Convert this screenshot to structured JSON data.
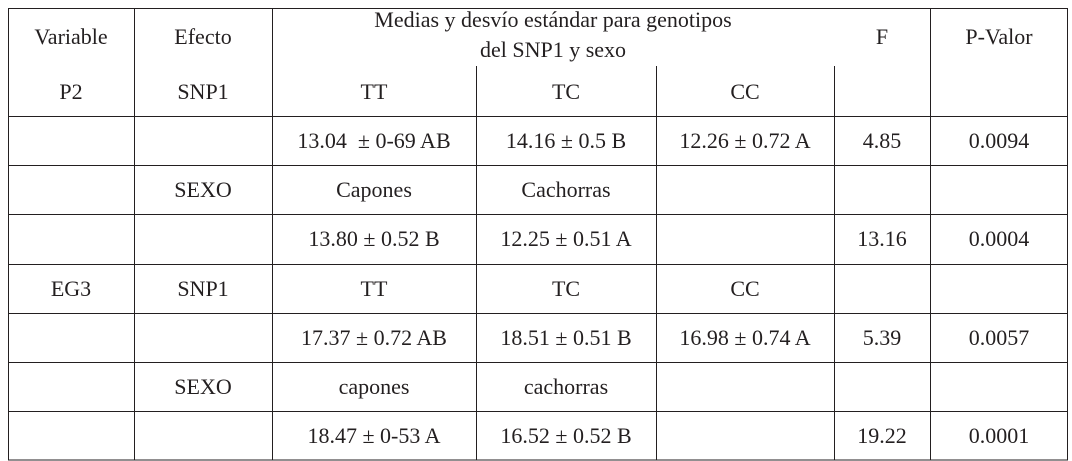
{
  "table": {
    "header": {
      "variable": "Variable",
      "efecto": "Efecto",
      "medias": [
        "Medias y desvío estándar para genotipos",
        "del SNP1 y sexo"
      ],
      "f": "F",
      "p_valor": "P-Valor"
    },
    "rows": [
      [
        "P2",
        "SNP1",
        "TT",
        "TC",
        "CC",
        null,
        null
      ],
      [
        null,
        null,
        "13.04  ± 0-69 AB",
        "14.16 ± 0.5 B",
        "12.26 ± 0.72 A",
        "4.85",
        "0.0094"
      ],
      [
        null,
        "SEXO",
        "Capones",
        "Cachorras",
        null,
        null,
        null
      ],
      [
        null,
        null,
        "13.80 ± 0.52 B",
        "12.25 ± 0.51 A",
        null,
        "13.16",
        "0.0004"
      ],
      [
        "EG3",
        "SNP1",
        "TT",
        "TC",
        "CC",
        null,
        null
      ],
      [
        null,
        null,
        "17.37 ± 0.72 AB",
        "18.51 ± 0.51 B",
        "16.98 ± 0.74 A",
        "5.39",
        "0.0057"
      ],
      [
        null,
        "SEXO",
        "capones",
        "cachorras",
        null,
        null,
        null
      ],
      [
        null,
        null,
        "18.47 ± 0-53 A",
        "16.52 ± 0.52 B",
        null,
        "19.22",
        "0.0001"
      ]
    ]
  }
}
